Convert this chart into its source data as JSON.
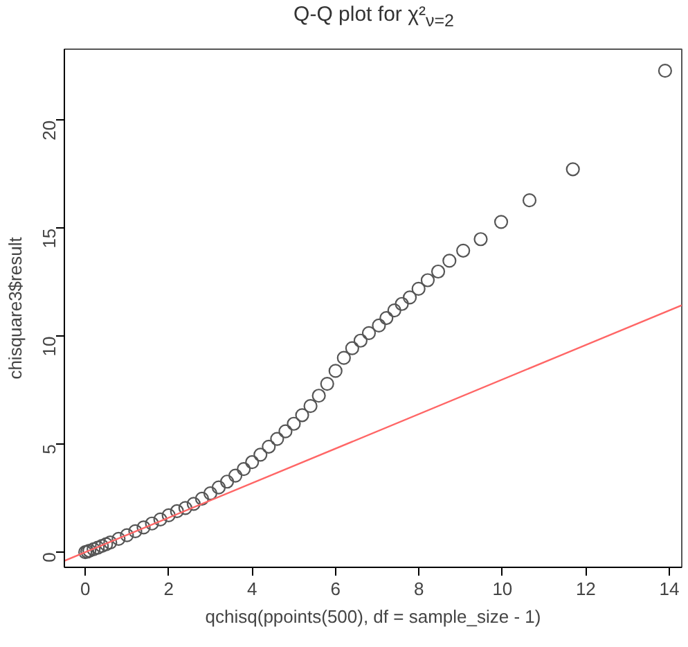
{
  "chart_data": {
    "type": "scatter",
    "title": "Q-Q plot for χ²$_{ν=2}$",
    "xlabel": "qchisq(ppoints(500), df = sample_size - 1)",
    "ylabel": "chisquare3$result",
    "xlim": [
      -0.5,
      14.3
    ],
    "ylim": [
      -0.7,
      23.3
    ],
    "xticks": [
      0,
      2,
      4,
      6,
      8,
      10,
      12,
      14
    ],
    "yticks": [
      0,
      5,
      10,
      15,
      20
    ],
    "grid": false,
    "series": [
      {
        "marker": "circle",
        "color": "#555555",
        "x": [
          0,
          0.05,
          0.1,
          0.2,
          0.3,
          0.4,
          0.5,
          0.6,
          0.8,
          1.0,
          1.2,
          1.4,
          1.6,
          1.8,
          2.0,
          2.2,
          2.4,
          2.6,
          2.8,
          3.0,
          3.2,
          3.4,
          3.6,
          3.8,
          4.0,
          4.2,
          4.4,
          4.6,
          4.8,
          5.0,
          5.2,
          5.4,
          5.6,
          5.8,
          6.0,
          6.2,
          6.4,
          6.6,
          6.8,
          7.04,
          7.22,
          7.41,
          7.59,
          7.78,
          7.99,
          8.21,
          8.46,
          8.73,
          9.06,
          9.48,
          9.97,
          10.65,
          11.69,
          13.9
        ],
        "values": [
          0,
          0.03,
          0.07,
          0.14,
          0.21,
          0.29,
          0.37,
          0.45,
          0.62,
          0.79,
          0.97,
          1.15,
          1.33,
          1.52,
          1.71,
          1.9,
          2.05,
          2.24,
          2.48,
          2.73,
          3.0,
          3.27,
          3.55,
          3.85,
          4.17,
          4.52,
          4.89,
          5.25,
          5.6,
          5.95,
          6.35,
          6.77,
          7.25,
          7.8,
          8.4,
          9.0,
          9.45,
          9.8,
          10.15,
          10.5,
          10.85,
          11.2,
          11.5,
          11.8,
          12.2,
          12.6,
          13.0,
          13.5,
          13.97,
          14.5,
          15.3,
          16.3,
          17.74,
          22.3
        ]
      },
      {
        "type": "line",
        "marker": "none",
        "color": "#ff6666",
        "x": [
          -0.5,
          14.3
        ],
        "values": [
          -0.4,
          11.44
        ]
      }
    ]
  }
}
